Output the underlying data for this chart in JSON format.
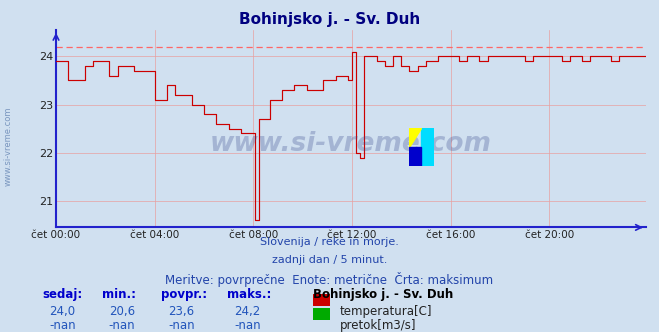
{
  "title": "Bohinjsko j. - Sv. Duh",
  "title_color": "#000080",
  "bg_color": "#d0e0f0",
  "plot_bg_color": "#d0e0f0",
  "line_color": "#cc0000",
  "dashed_line_color": "#ff6666",
  "dashed_line_value": 24.2,
  "x_labels": [
    "čet 00:00",
    "čet 04:00",
    "čet 08:00",
    "čet 12:00",
    "čet 16:00",
    "čet 20:00"
  ],
  "y_ticks": [
    21,
    22,
    23,
    24
  ],
  "ylim": [
    20.45,
    24.55
  ],
  "xlim": [
    0,
    287
  ],
  "grid_color": "#e8a0a0",
  "axis_color": "#2222cc",
  "subtitle1": "Slovenija / reke in morje.",
  "subtitle2": "zadnji dan / 5 minut.",
  "subtitle3": "Meritve: povrprečne  Enote: metrične  Črta: maksimum",
  "subtitle_color": "#2244aa",
  "table_headers": [
    "sedaj:",
    "min.:",
    "povpr.:",
    "maks.:"
  ],
  "table_values": [
    "24,0",
    "20,6",
    "23,6",
    "24,2"
  ],
  "station_name": "Bohinjsko j. - Sv. Duh",
  "legend1_label": "temperatura[C]",
  "legend1_color": "#cc0000",
  "legend2_label": "pretok[m3/s]",
  "legend2_color": "#00aa00",
  "table_nan": [
    "-nan",
    "-nan",
    "-nan",
    "-nan"
  ],
  "watermark_text": "www.si-vreme.com",
  "watermark_color": "#334488",
  "watermark_alpha": 0.28,
  "left_watermark": "www.si-vreme.com",
  "left_watermark_color": "#5577aa"
}
